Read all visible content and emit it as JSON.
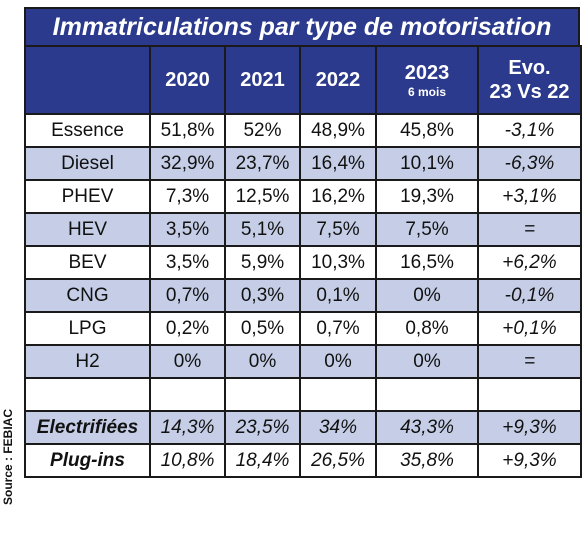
{
  "title": "Immatriculations par type de motorisation",
  "headers": {
    "years": [
      "2020",
      "2021",
      "2022",
      "2023"
    ],
    "sub_2023": "6 mois",
    "evo_line1": "Evo.",
    "evo_line2": "23 Vs 22"
  },
  "rows": [
    {
      "label": "Essence",
      "v": [
        "51,8%",
        "52%",
        "48,9%",
        "45,8%"
      ],
      "evo": "-3,1%"
    },
    {
      "label": "Diesel",
      "v": [
        "32,9%",
        "23,7%",
        "16,4%",
        "10,1%"
      ],
      "evo": "-6,3%"
    },
    {
      "label": "PHEV",
      "v": [
        "7,3%",
        "12,5%",
        "16,2%",
        "19,3%"
      ],
      "evo": "+3,1%"
    },
    {
      "label": "HEV",
      "v": [
        "3,5%",
        "5,1%",
        "7,5%",
        "7,5%"
      ],
      "evo": "="
    },
    {
      "label": "BEV",
      "v": [
        "3,5%",
        "5,9%",
        "10,3%",
        "16,5%"
      ],
      "evo": "+6,2%"
    },
    {
      "label": "CNG",
      "v": [
        "0,7%",
        "0,3%",
        "0,1%",
        "0%"
      ],
      "evo": "-0,1%"
    },
    {
      "label": "LPG",
      "v": [
        "0,2%",
        "0,5%",
        "0,7%",
        "0,8%"
      ],
      "evo": "+0,1%"
    },
    {
      "label": "H2",
      "v": [
        "0%",
        "0%",
        "0%",
        "0%"
      ],
      "evo": "="
    }
  ],
  "summary": [
    {
      "label": "Electrifiées",
      "v": [
        "14,3%",
        "23,5%",
        "34%",
        "43,3%"
      ],
      "evo": "+9,3%"
    },
    {
      "label": "Plug-ins",
      "v": [
        "10,8%",
        "18,4%",
        "26,5%",
        "35,8%"
      ],
      "evo": "+9,3%"
    }
  ],
  "source": "Source : FEBIAC",
  "colors": {
    "header_bg": "#2b3a8c",
    "stripe_bg": "#c5cee6",
    "border": "#1a1a1a"
  }
}
